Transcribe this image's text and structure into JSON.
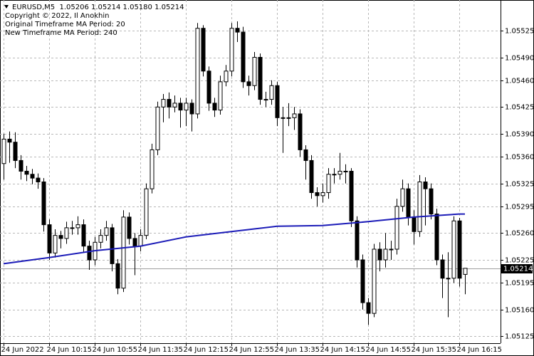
{
  "chart_data": {
    "type": "candlestick",
    "header": "EURUSD,M5  1.05206 1.05214 1.05180 1.05214",
    "annotations": [
      "Copyright © 2022, Il Anokhin",
      "Original Timeframe MA Period: 20",
      "New Timeframe MA Period: 240"
    ],
    "open": [
      1.05351,
      1.05383,
      1.05379,
      1.05355,
      1.05341,
      1.05337,
      1.05332,
      1.05327,
      1.05271,
      1.05234,
      1.05257,
      1.05253,
      1.05267,
      1.05267,
      1.05271,
      1.05243,
      1.05225,
      1.05248,
      1.05257,
      1.05267,
      1.0522,
      1.05188,
      1.05281,
      1.05253,
      1.05243,
      1.05257,
      1.05318,
      1.05369,
      1.05425,
      1.05435,
      1.05425,
      1.0543,
      1.05421,
      1.0543,
      1.05416,
      1.05528,
      1.05472,
      1.0543,
      1.05421,
      1.05458,
      1.05472,
      1.05528,
      1.05523,
      1.05458,
      1.05453,
      1.0549,
      1.05435,
      1.05435,
      1.05453,
      1.05411,
      1.05411,
      1.05411,
      1.05416,
      1.05369,
      1.05355,
      1.05313,
      1.05309,
      1.05313,
      1.05337,
      1.05337,
      1.05341,
      1.05341,
      1.05276,
      1.05225,
      1.05169,
      1.05155,
      1.05239,
      1.05225,
      1.05239,
      1.05239,
      1.05295,
      1.05318,
      1.05281,
      1.05262,
      1.05327,
      1.05318,
      1.05285,
      1.05225,
      1.05201,
      1.05201,
      1.05276,
      1.05206
    ],
    "high": [
      1.0539,
      1.05393,
      1.05392,
      1.05362,
      1.05348,
      1.05344,
      1.05338,
      1.05332,
      1.05278,
      1.05265,
      1.05263,
      1.05275,
      1.05276,
      1.05282,
      1.05278,
      1.0525,
      1.05255,
      1.05265,
      1.05276,
      1.05272,
      1.05226,
      1.0529,
      1.05287,
      1.0526,
      1.05265,
      1.05325,
      1.05377,
      1.05432,
      1.05442,
      1.05444,
      1.0544,
      1.05437,
      1.05437,
      1.05435,
      1.05535,
      1.05532,
      1.05478,
      1.05437,
      1.05466,
      1.0548,
      1.05535,
      1.05537,
      1.0553,
      1.05466,
      1.05497,
      1.05495,
      1.05445,
      1.0546,
      1.05458,
      1.05425,
      1.0543,
      1.05425,
      1.05422,
      1.05375,
      1.05362,
      1.0532,
      1.05325,
      1.05345,
      1.05345,
      1.05365,
      1.0535,
      1.05345,
      1.05282,
      1.05232,
      1.05175,
      1.05246,
      1.05248,
      1.0526,
      1.0525,
      1.05305,
      1.0533,
      1.05325,
      1.0529,
      1.05336,
      1.05333,
      1.05325,
      1.05292,
      1.05232,
      1.05235,
      1.05282,
      1.0528,
      1.05214
    ],
    "low": [
      1.0533,
      1.05352,
      1.05345,
      1.0533,
      1.05328,
      1.05324,
      1.05318,
      1.05262,
      1.05225,
      1.05228,
      1.0524,
      1.05246,
      1.05258,
      1.05258,
      1.05235,
      1.05212,
      1.05218,
      1.0524,
      1.0525,
      1.0521,
      1.0518,
      1.05183,
      1.05245,
      1.05205,
      1.05236,
      1.05252,
      1.05312,
      1.05362,
      1.05405,
      1.0541,
      1.05418,
      1.05398,
      1.054,
      1.05393,
      1.0541,
      1.05465,
      1.0542,
      1.05412,
      1.05415,
      1.05452,
      1.05465,
      1.0551,
      1.0545,
      1.0544,
      1.05447,
      1.05428,
      1.05425,
      1.05428,
      1.054,
      1.05365,
      1.054,
      1.05395,
      1.0536,
      1.0533,
      1.05305,
      1.05295,
      1.053,
      1.05305,
      1.05325,
      1.0533,
      1.05325,
      1.05268,
      1.05215,
      1.0516,
      1.0514,
      1.0515,
      1.0521,
      1.05215,
      1.05225,
      1.05232,
      1.05288,
      1.0527,
      1.05245,
      1.05255,
      1.0527,
      1.05278,
      1.05218,
      1.05175,
      1.0515,
      1.05195,
      1.0519,
      1.0518
    ],
    "close": [
      1.05383,
      1.05379,
      1.05355,
      1.05341,
      1.05337,
      1.05332,
      1.05327,
      1.05271,
      1.05234,
      1.05257,
      1.05253,
      1.05267,
      1.05267,
      1.05271,
      1.05243,
      1.05225,
      1.05248,
      1.05257,
      1.05267,
      1.0522,
      1.05188,
      1.05281,
      1.05253,
      1.05243,
      1.05257,
      1.05318,
      1.05369,
      1.05425,
      1.05435,
      1.05425,
      1.0543,
      1.05421,
      1.0543,
      1.05416,
      1.05528,
      1.05472,
      1.0543,
      1.05421,
      1.05458,
      1.05472,
      1.05528,
      1.05523,
      1.05458,
      1.05453,
      1.0549,
      1.05435,
      1.05435,
      1.05453,
      1.05411,
      1.05411,
      1.05411,
      1.05416,
      1.05369,
      1.05355,
      1.05313,
      1.05309,
      1.05313,
      1.05337,
      1.05337,
      1.05341,
      1.05341,
      1.05276,
      1.05225,
      1.05169,
      1.05155,
      1.05239,
      1.05225,
      1.05239,
      1.05239,
      1.05295,
      1.05318,
      1.05281,
      1.05262,
      1.05327,
      1.05318,
      1.05285,
      1.05225,
      1.05201,
      1.05201,
      1.05276,
      1.05201,
      1.05214
    ],
    "up_color": "#ffffff",
    "down_color": "#000000",
    "ma": {
      "x": [
        0,
        8,
        16,
        24,
        32,
        40,
        48,
        56,
        64,
        72,
        80,
        81
      ],
      "values": [
        1.0522,
        1.05228,
        1.05237,
        1.05243,
        1.05255,
        1.05262,
        1.05269,
        1.0527,
        1.05275,
        1.05281,
        1.05285,
        1.05285
      ],
      "color": "#1c1cb8"
    },
    "last_price": 1.05214,
    "ylim": [
      1.05116,
      1.05565
    ],
    "yticks": [
      1.05525,
      {
        "value": 1.0549,
        "label": "1.05490"
      },
      {
        "value": 1.0546,
        "label": "1.05460"
      },
      1.05425,
      {
        "value": 1.0539,
        "label": "1.05390"
      },
      {
        "value": 1.0536,
        "label": "1.05360"
      },
      1.05325,
      1.05295,
      {
        "value": 1.0526,
        "label": "1.05260"
      },
      1.05225,
      1.05195,
      {
        "value": 1.0516,
        "label": "1.05160"
      },
      1.05125
    ],
    "xlim": [
      -0.625,
      87.25
    ],
    "xticks": [
      {
        "value": 0,
        "label": "24 Jun 2022"
      },
      {
        "value": 8,
        "label": "24 Jun 10:15"
      },
      {
        "value": 16,
        "label": "24 Jun 10:55"
      },
      {
        "value": 24,
        "label": "24 Jun 11:35"
      },
      {
        "value": 32,
        "label": "24 Jun 12:15"
      },
      {
        "value": 40,
        "label": "24 Jun 12:55"
      },
      {
        "value": 48,
        "label": "24 Jun 13:35"
      },
      {
        "value": 56,
        "label": "24 Jun 14:15"
      },
      {
        "value": 64,
        "label": "24 Jun 14:55"
      },
      {
        "value": 72,
        "label": "24 Jun 15:35"
      },
      {
        "value": 80,
        "label": "24 Jun 16:15"
      }
    ],
    "grid": true
  }
}
